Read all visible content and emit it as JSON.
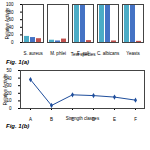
{
  "chart_data": [
    {
      "type": "bar",
      "title": "Fig. 1(a)",
      "x_label": "Test species",
      "y_label": "Relative Activity",
      "categories": [
        "S. aureus",
        "M. phlei",
        "E. coli",
        "C. albicans",
        "Yeasts"
      ],
      "series": [
        {
          "color": "#4bacc6",
          "values": [
            16,
            6,
            100,
            100,
            100
          ]
        },
        {
          "color": "#4472c4",
          "values": [
            13,
            4,
            100,
            100,
            100
          ]
        },
        {
          "color": "#c0504d",
          "values": [
            10,
            9,
            5,
            4,
            3
          ]
        }
      ],
      "ylim": [
        0,
        100
      ],
      "yticks": [
        0,
        20,
        40,
        60,
        80,
        100
      ]
    },
    {
      "type": "line",
      "title": "Fig. 1(b)",
      "x_label": "Strength classes",
      "y_label": "Relative Activity",
      "categories": [
        "A",
        "B",
        "C",
        "D",
        "E",
        "F"
      ],
      "values": [
        38,
        4,
        18,
        17,
        15,
        11
      ],
      "color": "#1f4e9c",
      "marker": "diamond",
      "ylim": [
        0,
        50
      ],
      "yticks": [
        0,
        10,
        20,
        30,
        40,
        50
      ]
    }
  ]
}
